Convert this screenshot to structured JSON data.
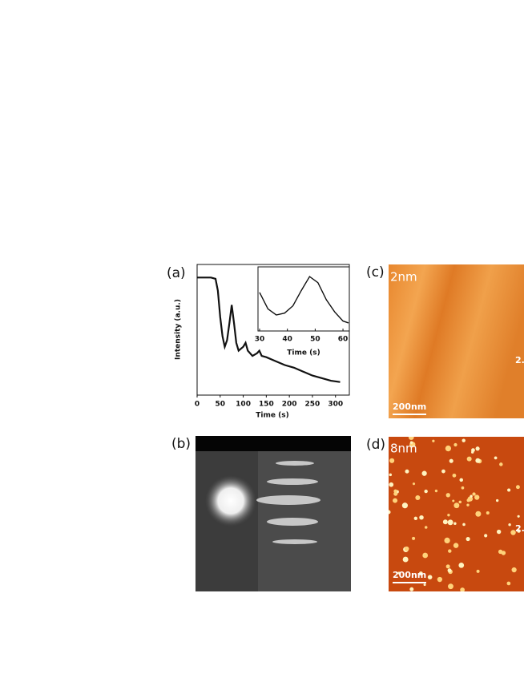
{
  "panels": [
    {
      "label": "(a)"
    },
    {
      "label": "(b)"
    },
    {
      "label": "(c)",
      "height_scale": "2nm",
      "scale_bar": "200nm",
      "edge_text": "2."
    },
    {
      "label": "(d)",
      "height_scale": "8nm",
      "scale_bar": "200nm",
      "edge_text": "2."
    }
  ],
  "chart_data": [
    {
      "type": "line",
      "xlabel": "Time (s)",
      "ylabel": "Intensity (a.u.)",
      "color": "#111111",
      "x": [
        0,
        10,
        20,
        30,
        40,
        45,
        50,
        55,
        60,
        65,
        70,
        75,
        80,
        85,
        90,
        100,
        105,
        110,
        120,
        130,
        135,
        140,
        150,
        170,
        190,
        210,
        230,
        250,
        270,
        290,
        310
      ],
      "values": [
        90,
        90,
        90,
        90,
        89,
        80,
        60,
        45,
        37,
        42,
        55,
        69,
        55,
        40,
        34,
        37,
        40,
        34,
        30,
        32,
        34,
        30,
        29,
        26,
        23,
        21,
        18,
        15,
        13,
        11,
        10
      ],
      "xlim": [
        0,
        330
      ],
      "ylim": [
        0,
        100
      ],
      "xticks": [
        0,
        50,
        100,
        150,
        200,
        250,
        300
      ]
    },
    {
      "type": "line",
      "xlabel": "Time (s)",
      "color": "#111111",
      "x": [
        30,
        33,
        36,
        39,
        42,
        45,
        48,
        51,
        54,
        57,
        60,
        62
      ],
      "values": [
        62,
        35,
        25,
        28,
        40,
        65,
        88,
        78,
        50,
        30,
        15,
        12
      ],
      "xlim": [
        30,
        62
      ],
      "ylim": [
        0,
        100
      ],
      "xticks": [
        30,
        40,
        50,
        60
      ]
    }
  ]
}
